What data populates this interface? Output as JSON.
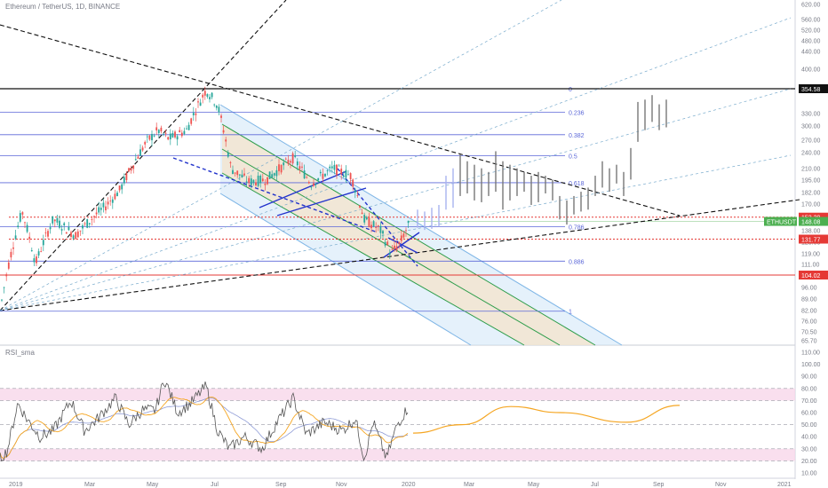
{
  "header": {
    "symbol": "Ethereum / TetherUS, 1D, BINANCE"
  },
  "rsi_panel": {
    "title": "RSI_sma"
  },
  "colors": {
    "up": "#26a69a",
    "down": "#ef5350",
    "fib": "#5b67d8",
    "red_level": "#e53935",
    "channel_fill": "#cfe6f7",
    "channel_inner": "#f7e3c8",
    "green_line": "#2e9d4b",
    "rsi_line": "#555555",
    "rsi_sma": "#f5a623",
    "rsi_sma2": "#8e9bd6",
    "rsi_band": "#f8d7ea",
    "ghost": "#a9b3f0",
    "projection": "#777777"
  },
  "chart_data": {
    "type": "candlestick",
    "main_axis": {
      "ticks": [
        "620.00",
        "560.00",
        "520.00",
        "480.00",
        "440.00",
        "400.00",
        "330.00",
        "300.00",
        "270.00",
        "240.00",
        "210.00",
        "195.00",
        "182.00",
        "170.00",
        "159.00",
        "138.00",
        "128.00",
        "119.00",
        "111.00",
        "104.00",
        "96.00",
        "89.00",
        "82.00",
        "76.00",
        "70.50",
        "65.70"
      ]
    },
    "price_labels": [
      {
        "value": "354.58",
        "kind": "black"
      },
      {
        "value": "152.29",
        "kind": "red"
      },
      {
        "value": "148.08",
        "kind": "green",
        "tag": "ETHUSDT"
      },
      {
        "value": "131.77",
        "kind": "red"
      },
      {
        "value": "104.02",
        "kind": "red"
      }
    ],
    "fib_levels": [
      {
        "ratio": "0",
        "price": 354.58
      },
      {
        "ratio": "0.236",
        "price": 304
      },
      {
        "ratio": "0.382",
        "price": 262
      },
      {
        "ratio": "0.5",
        "price": 228
      },
      {
        "ratio": "0.618",
        "price": 191
      },
      {
        "ratio": "0.786",
        "price": 143
      },
      {
        "ratio": "0.886",
        "price": 114
      },
      {
        "ratio": "1",
        "price": 82
      }
    ],
    "x_labels": [
      "2019",
      "Mar",
      "May",
      "Jul",
      "Sep",
      "Nov",
      "2020",
      "Mar",
      "May",
      "Jul",
      "Sep",
      "Nov",
      "2021"
    ],
    "anchors": [
      [
        0,
        82
      ],
      [
        25,
        158
      ],
      [
        40,
        112
      ],
      [
        60,
        150
      ],
      [
        85,
        135
      ],
      [
        120,
        165
      ],
      [
        135,
        182
      ],
      [
        165,
        250
      ],
      [
        178,
        270
      ],
      [
        190,
        255
      ],
      [
        210,
        270
      ],
      [
        232,
        352
      ],
      [
        245,
        318
      ],
      [
        260,
        210
      ],
      [
        280,
        192
      ],
      [
        300,
        195
      ],
      [
        330,
        225
      ],
      [
        350,
        190
      ],
      [
        375,
        210
      ],
      [
        395,
        200
      ],
      [
        410,
        150
      ],
      [
        428,
        140
      ],
      [
        440,
        120
      ],
      [
        450,
        128
      ],
      [
        460,
        145
      ]
    ],
    "rsi_axis": {
      "ticks": [
        "110.00",
        "100.00",
        "90.00",
        "80.00",
        "70.00",
        "60.00",
        "50.00",
        "40.00",
        "30.00",
        "20.00",
        "10.00"
      ]
    },
    "rsi_anchors": [
      [
        0,
        22
      ],
      [
        8,
        28
      ],
      [
        20,
        68
      ],
      [
        30,
        55
      ],
      [
        45,
        40
      ],
      [
        60,
        45
      ],
      [
        80,
        70
      ],
      [
        95,
        45
      ],
      [
        110,
        55
      ],
      [
        130,
        72
      ],
      [
        145,
        50
      ],
      [
        160,
        62
      ],
      [
        175,
        62
      ],
      [
        185,
        88
      ],
      [
        200,
        60
      ],
      [
        215,
        68
      ],
      [
        232,
        82
      ],
      [
        245,
        45
      ],
      [
        258,
        30
      ],
      [
        275,
        40
      ],
      [
        295,
        30
      ],
      [
        310,
        50
      ],
      [
        330,
        72
      ],
      [
        345,
        42
      ],
      [
        365,
        52
      ],
      [
        385,
        45
      ],
      [
        400,
        55
      ],
      [
        410,
        22
      ],
      [
        420,
        52
      ],
      [
        435,
        22
      ],
      [
        447,
        50
      ],
      [
        460,
        65
      ]
    ],
    "rsi_sma_projection": [
      [
        465,
        43
      ],
      [
        520,
        50
      ],
      [
        575,
        65
      ],
      [
        630,
        60
      ],
      [
        705,
        52
      ],
      [
        765,
        66
      ]
    ]
  }
}
